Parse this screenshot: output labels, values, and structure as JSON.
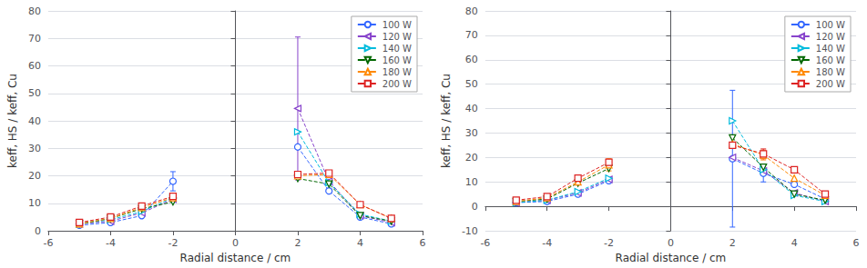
{
  "chart_data": [
    {
      "type": "line",
      "xlabel": "Radial distance / cm",
      "ylabel": "keff, HS / keff, Cu",
      "xlim": [
        -6,
        6
      ],
      "xticks": [
        -6,
        -4,
        -2,
        0,
        2,
        4,
        6
      ],
      "ylim": [
        0,
        80
      ],
      "yticks": [
        0,
        10,
        20,
        30,
        40,
        50,
        60,
        70,
        80
      ],
      "grid": true,
      "legend": "upper right",
      "series": [
        {
          "name": "100 W",
          "color": "#3366FF",
          "marker": "circle",
          "line_style": "dashed",
          "x": [
            -5.0,
            -4.0,
            -3.0,
            -2.0,
            null,
            2.0,
            3.0,
            4.0,
            5.0
          ],
          "values": [
            2.0,
            3.0,
            5.5,
            18.0,
            null,
            30.5,
            14.5,
            5.0,
            2.5
          ],
          "yerr": [
            0.0,
            0.0,
            0.0,
            3.5,
            null,
            0.0,
            0.0,
            0.0,
            0.0
          ]
        },
        {
          "name": "120 W",
          "color": "#8844CC",
          "marker": "triangle-left",
          "line_style": "dashed",
          "x": [
            -5.0,
            -4.0,
            -3.0,
            -2.0,
            null,
            2.0,
            3.0,
            4.0,
            5.0
          ],
          "values": [
            2.5,
            3.5,
            6.5,
            11.5,
            null,
            44.5,
            18.0,
            5.5,
            3.0
          ],
          "yerr": [
            0.0,
            0.0,
            0.0,
            0.0,
            null,
            26.0,
            0.0,
            0.0,
            0.0
          ]
        },
        {
          "name": "140 W",
          "color": "#00BBDD",
          "marker": "triangle-right",
          "line_style": "dashed",
          "x": [
            -5.0,
            -4.0,
            -3.0,
            -2.0,
            null,
            2.0,
            3.0,
            4.0,
            5.0
          ],
          "values": [
            2.5,
            4.0,
            7.0,
            12.0,
            null,
            36.0,
            17.5,
            6.0,
            3.5
          ],
          "yerr": [
            0.0,
            0.0,
            0.0,
            0.0,
            null,
            0.0,
            0.0,
            0.0,
            0.0
          ]
        },
        {
          "name": "160 W",
          "color": "#006600",
          "marker": "triangle-down",
          "line_style": "dashed",
          "x": [
            -5.0,
            -4.0,
            -3.0,
            -2.0,
            null,
            2.0,
            3.0,
            4.0,
            5.0
          ],
          "values": [
            2.5,
            4.5,
            8.0,
            10.5,
            null,
            19.0,
            17.0,
            5.5,
            3.5
          ],
          "yerr": [
            0.0,
            0.0,
            0.0,
            0.0,
            null,
            0.0,
            0.0,
            0.0,
            0.0
          ]
        },
        {
          "name": "180 W",
          "color": "#FF8800",
          "marker": "triangle-up",
          "line_style": "dashed",
          "x": [
            -5.0,
            -4.0,
            -3.0,
            -2.0,
            null,
            2.0,
            3.0,
            4.0,
            5.0
          ],
          "values": [
            2.5,
            4.5,
            8.5,
            12.0,
            null,
            20.0,
            20.5,
            9.5,
            4.5
          ],
          "yerr": [
            0.0,
            0.0,
            0.0,
            0.0,
            null,
            0.0,
            0.0,
            0.0,
            0.0
          ]
        },
        {
          "name": "200 W",
          "color": "#DD2222",
          "marker": "square",
          "line_style": "dashed",
          "x": [
            -5.0,
            -4.0,
            -3.0,
            -2.0,
            null,
            2.0,
            3.0,
            4.0,
            5.0
          ],
          "values": [
            3.0,
            5.0,
            9.0,
            12.5,
            null,
            20.5,
            21.0,
            9.5,
            4.5
          ],
          "yerr": [
            0.0,
            0.0,
            0.0,
            0.0,
            null,
            0.0,
            0.0,
            0.0,
            0.0
          ]
        }
      ]
    },
    {
      "type": "line",
      "xlabel": "Radial distance / cm",
      "ylabel": "keff, HS / keff, Cu",
      "xlim": [
        -6,
        6
      ],
      "xticks": [
        -6,
        -4,
        -2,
        0,
        2,
        4,
        6
      ],
      "ylim": [
        -10,
        80
      ],
      "yticks": [
        -10,
        0,
        10,
        20,
        30,
        40,
        50,
        60,
        70,
        80
      ],
      "grid": true,
      "legend": "upper right",
      "series": [
        {
          "name": "100 W",
          "color": "#3366FF",
          "marker": "circle",
          "line_style": "dashed",
          "x": [
            -5.0,
            -4.0,
            -3.0,
            -2.0,
            null,
            2.0,
            3.0,
            4.0,
            5.0
          ],
          "values": [
            1.5,
            2.0,
            5.0,
            10.5,
            null,
            19.5,
            13.5,
            9.0,
            3.0
          ],
          "yerr": [
            0.0,
            0.0,
            0.0,
            0.0,
            null,
            28.0,
            3.5,
            0.0,
            0.0
          ]
        },
        {
          "name": "120 W",
          "color": "#8844CC",
          "marker": "triangle-left",
          "line_style": "dashed",
          "x": [
            -5.0,
            -4.0,
            -3.0,
            -2.0,
            null,
            2.0,
            3.0,
            4.0,
            5.0
          ],
          "values": [
            1.5,
            2.5,
            5.5,
            11.0,
            null,
            20.0,
            14.5,
            5.5,
            2.0
          ],
          "yerr": [
            0.0,
            0.0,
            0.0,
            0.0,
            null,
            0.0,
            0.0,
            0.0,
            0.0
          ]
        },
        {
          "name": "140 W",
          "color": "#00BBDD",
          "marker": "triangle-right",
          "line_style": "dashed",
          "x": [
            -5.0,
            -4.0,
            -3.0,
            -2.0,
            null,
            2.0,
            3.0,
            4.0,
            5.0
          ],
          "values": [
            1.5,
            2.5,
            6.0,
            11.5,
            null,
            35.0,
            15.0,
            4.5,
            2.0
          ],
          "yerr": [
            0.0,
            0.0,
            0.0,
            0.0,
            null,
            0.0,
            0.0,
            0.0,
            0.0
          ]
        },
        {
          "name": "160 W",
          "color": "#006600",
          "marker": "triangle-down",
          "line_style": "dashed",
          "x": [
            -5.0,
            -4.0,
            -3.0,
            -2.0,
            null,
            2.0,
            3.0,
            4.0,
            5.0
          ],
          "values": [
            2.0,
            3.0,
            9.5,
            15.5,
            null,
            28.0,
            16.0,
            5.0,
            2.5
          ],
          "yerr": [
            0.0,
            0.0,
            0.0,
            0.0,
            null,
            0.0,
            0.0,
            0.0,
            0.0
          ]
        },
        {
          "name": "180 W",
          "color": "#FF8800",
          "marker": "triangle-up",
          "line_style": "dashed",
          "x": [
            -5.0,
            -4.0,
            -3.0,
            -2.0,
            null,
            2.0,
            3.0,
            4.0,
            5.0
          ],
          "values": [
            2.0,
            3.5,
            10.0,
            17.0,
            null,
            25.5,
            21.0,
            11.5,
            4.5
          ],
          "yerr": [
            0.0,
            0.0,
            0.0,
            2.5,
            null,
            0.0,
            2.0,
            0.0,
            0.0
          ]
        },
        {
          "name": "200 W",
          "color": "#DD2222",
          "marker": "square",
          "line_style": "dashed",
          "x": [
            -5.0,
            -4.0,
            -3.0,
            -2.0,
            null,
            2.0,
            3.0,
            4.0,
            5.0
          ],
          "values": [
            2.5,
            4.0,
            11.5,
            18.0,
            null,
            25.0,
            21.5,
            15.0,
            5.0
          ],
          "yerr": [
            0.0,
            0.0,
            0.0,
            0.0,
            null,
            0.0,
            2.0,
            0.0,
            0.0
          ]
        }
      ]
    }
  ]
}
